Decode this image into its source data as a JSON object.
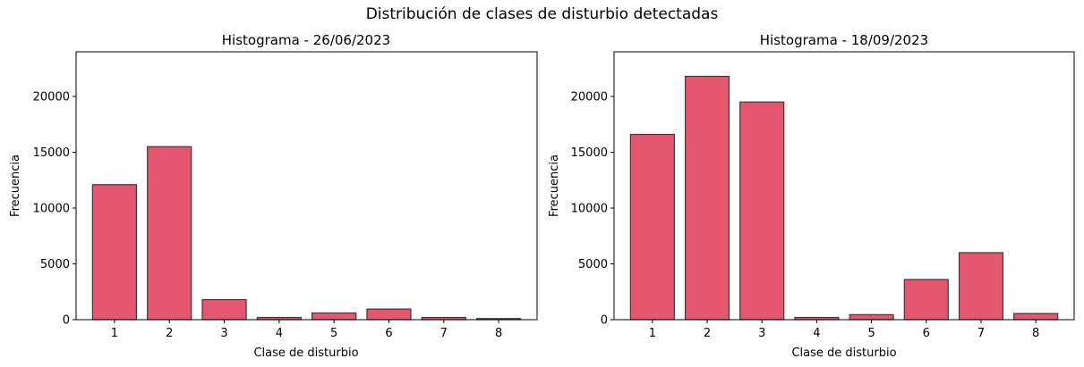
{
  "suptitle": "Distribución de clases de disturbio detectadas",
  "colors": {
    "bar_fill": "#e5566f",
    "bar_edge": "#3a3a3a",
    "axis": "#000000"
  },
  "chart_data": [
    {
      "type": "bar",
      "title": "Histograma - 26/06/2023",
      "xlabel": "Clase de disturbio",
      "ylabel": "Frecuencia",
      "categories": [
        "1",
        "2",
        "3",
        "4",
        "5",
        "6",
        "7",
        "8"
      ],
      "values": [
        12100,
        15500,
        1800,
        200,
        600,
        950,
        200,
        100
      ],
      "ylim": [
        0,
        24000
      ],
      "yticks": [
        0,
        5000,
        10000,
        15000,
        20000
      ],
      "grid": false
    },
    {
      "type": "bar",
      "title": "Histograma - 18/09/2023",
      "xlabel": "Clase de disturbio",
      "ylabel": "Frecuencia",
      "categories": [
        "1",
        "2",
        "3",
        "4",
        "5",
        "6",
        "7",
        "8"
      ],
      "values": [
        16600,
        21800,
        19500,
        200,
        450,
        3600,
        6000,
        550
      ],
      "ylim": [
        0,
        24000
      ],
      "yticks": [
        0,
        5000,
        10000,
        15000,
        20000
      ],
      "grid": false
    }
  ]
}
